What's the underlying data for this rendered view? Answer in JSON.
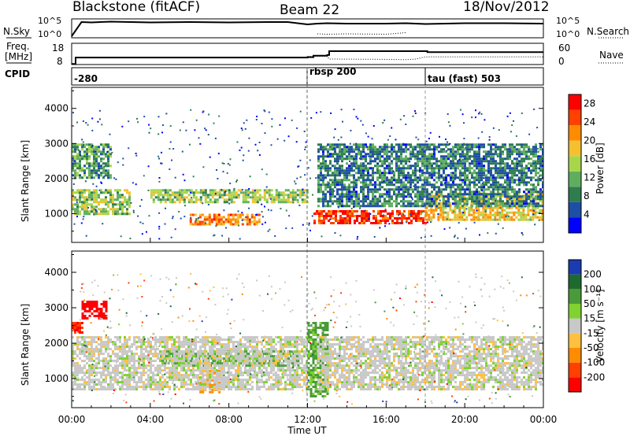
{
  "header": {
    "station": "Blackstone (fitACF)",
    "beam": "Beam 22",
    "date": "18/Nov/2012"
  },
  "left_labels": {
    "nsky": "N.Sky",
    "freq_line1": "Freq.",
    "freq_line2": "[MHz]",
    "cpid": "CPID"
  },
  "right_labels": {
    "nsearch": "N.Search",
    "nave": "Nave"
  },
  "colors": {
    "power": [
      "#0000ff",
      "#1e4ea6",
      "#2e7d4f",
      "#5fae5f",
      "#a8d64a",
      "#f5c030",
      "#ff8c00",
      "#ff4000",
      "#ff0000"
    ],
    "velocity": [
      "#1a3cb0",
      "#1e6a2e",
      "#4a9a3a",
      "#7fd230",
      "#c8c8c8",
      "#ffc040",
      "#ff8c00",
      "#ff4000",
      "#ff0000"
    ]
  },
  "chart_data": [
    {
      "type": "line",
      "name": "noise-panel",
      "x": [
        0,
        0.5,
        1,
        2,
        3,
        4,
        6,
        8,
        10,
        11,
        12,
        12.5,
        13,
        14,
        16,
        17,
        18,
        20,
        22,
        24
      ],
      "xlabel": "Time UT",
      "series": [
        {
          "name": "N.Sky",
          "values": [
            1,
            4.6,
            4.5,
            4.7,
            4.6,
            4.5,
            4.6,
            4.5,
            4.6,
            4.6,
            4.0,
            4.2,
            4.3,
            4.2,
            4.2,
            4.3,
            4.1,
            4.3,
            4.3,
            4.2
          ]
        },
        {
          "name": "N.Search",
          "values": [
            null,
            null,
            null,
            null,
            null,
            null,
            null,
            null,
            null,
            null,
            null,
            1.6,
            1.5,
            1.6,
            1.5,
            1.9,
            null,
            null,
            null,
            null
          ]
        }
      ],
      "ylim_left": [
        1,
        5
      ],
      "ylim_right": [
        1,
        5
      ],
      "left_ticks": [
        "10^5",
        "10^0"
      ],
      "right_ticks": [
        "10^5",
        "10^0"
      ]
    },
    {
      "type": "line",
      "name": "freq-nave-panel",
      "x": [
        0,
        0.2,
        3,
        6,
        9,
        12,
        12.3,
        13,
        13.1,
        16,
        17,
        17.5,
        18,
        18.1,
        20,
        24
      ],
      "series": [
        {
          "name": "Freq.",
          "values": [
            7.5,
            11,
            11,
            11,
            11,
            11.2,
            12,
            12.4,
            14.5,
            14.5,
            14.5,
            14.5,
            14.5,
            14.0,
            14.0,
            14.0
          ]
        },
        {
          "name": "Nave",
          "values": [
            null,
            null,
            null,
            null,
            null,
            22,
            22,
            22,
            13,
            12,
            11,
            13,
            20,
            20,
            20,
            20
          ]
        }
      ],
      "left_ticks": [
        8,
        18
      ],
      "right_ticks": [
        0,
        60
      ]
    },
    {
      "type": "table",
      "name": "cpid-panel",
      "x_start": [
        0,
        12,
        18
      ],
      "labels": [
        "-280",
        "rbsp 200",
        "tau (fast) 503"
      ]
    },
    {
      "type": "heatmap",
      "name": "power-panel",
      "ylabel": "Slant Range [km]",
      "xlim": [
        0,
        24
      ],
      "ylim": [
        180,
        4600
      ],
      "x_ticks": [
        "00:00",
        "04:00",
        "08:00",
        "12:00",
        "16:00",
        "20:00",
        "00:00"
      ],
      "y_ticks": [
        1000,
        2000,
        3000,
        4000
      ],
      "colorbar": {
        "label": "Power [dB]",
        "ticks": [
          4,
          8,
          12,
          16,
          20,
          24,
          28
        ],
        "range": [
          0,
          30
        ]
      },
      "features": [
        {
          "t0": 0,
          "t1": 3,
          "r0": 1000,
          "r1": 1700,
          "level": 14
        },
        {
          "t0": 0,
          "t1": 2,
          "r0": 2000,
          "r1": 3000,
          "level": 10
        },
        {
          "t0": 4,
          "t1": 12,
          "r0": 1300,
          "r1": 1700,
          "level": 14
        },
        {
          "t0": 6,
          "t1": 9.5,
          "r0": 700,
          "r1": 1000,
          "level": 22
        },
        {
          "t0": 12.3,
          "t1": 18,
          "r0": 750,
          "r1": 1100,
          "level": 26
        },
        {
          "t0": 18,
          "t1": 24,
          "r0": 800,
          "r1": 1600,
          "level": 18
        },
        {
          "t0": 12.5,
          "t1": 24,
          "r0": 1200,
          "r1": 3000,
          "level": 8
        }
      ]
    },
    {
      "type": "heatmap",
      "name": "velocity-panel",
      "ylabel": "Slant Range [km]",
      "xlabel": "Time UT",
      "xlim": [
        0,
        24
      ],
      "ylim": [
        180,
        4600
      ],
      "x_ticks": [
        "00:00",
        "04:00",
        "08:00",
        "12:00",
        "16:00",
        "20:00",
        "00:00"
      ],
      "y_ticks": [
        1000,
        2000,
        3000,
        4000
      ],
      "colorbar": {
        "label": "Velocity [m s⁻¹]",
        "ticks": [
          200,
          100,
          50,
          15,
          -15,
          -50,
          -100,
          -200
        ],
        "range": [
          -250,
          250
        ]
      },
      "features": [
        {
          "t0": 0.5,
          "t1": 1.8,
          "r0": 2700,
          "r1": 3200,
          "level": -220
        },
        {
          "t0": 0,
          "t1": 0.5,
          "r0": 2300,
          "r1": 2600,
          "level": -200
        },
        {
          "t0": 4.5,
          "t1": 11.5,
          "r0": 1400,
          "r1": 1800,
          "level": 60
        },
        {
          "t0": 6.5,
          "t1": 7.5,
          "r0": 650,
          "r1": 1250,
          "level": -80
        },
        {
          "t0": 12,
          "t1": 13,
          "r0": 500,
          "r1": 2600,
          "level": 60
        },
        {
          "t0": 12.5,
          "t1": 24,
          "r0": 700,
          "r1": 2200,
          "level": 0
        },
        {
          "t0": 0,
          "t1": 12,
          "r0": 700,
          "r1": 2200,
          "level": 0
        }
      ]
    }
  ]
}
